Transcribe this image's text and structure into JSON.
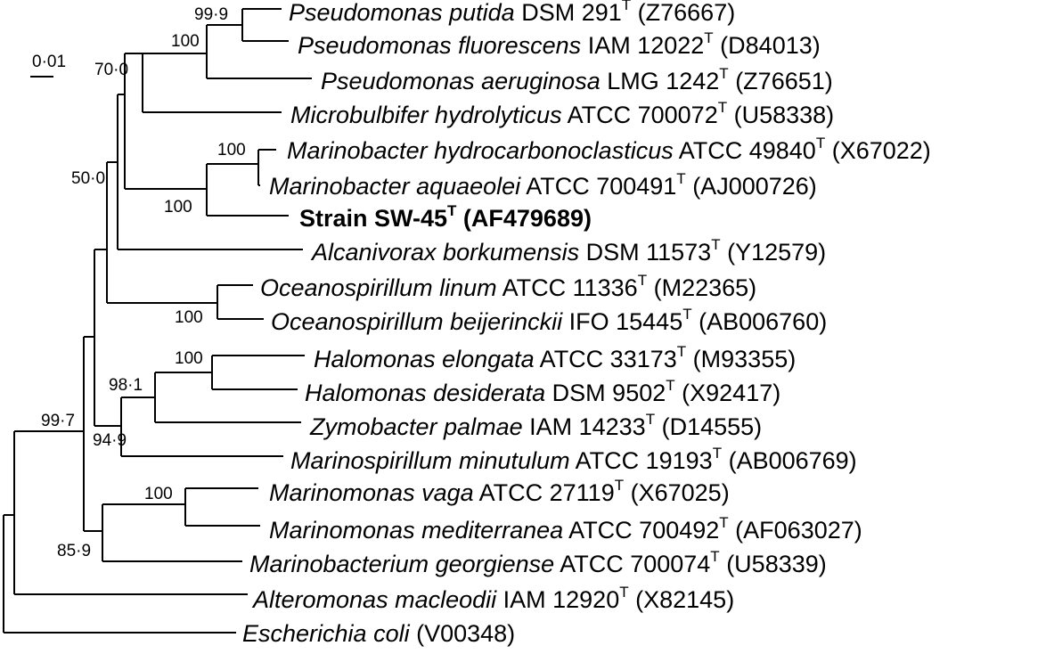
{
  "scale_bar": {
    "label": "0·01"
  },
  "taxa": [
    {
      "id": "t1",
      "genus": "Pseudomonas putida",
      "strain": " DSM 291",
      "type_strain": "T",
      "accession": " (Z76667)"
    },
    {
      "id": "t2",
      "genus": "Pseudomonas fluorescens",
      "strain": " IAM 12022",
      "type_strain": "T",
      "accession": " (D84013)"
    },
    {
      "id": "t3",
      "genus": "Pseudomonas aeruginosa",
      "strain": " LMG 1242",
      "type_strain": "T",
      "accession": " (Z76651)"
    },
    {
      "id": "t4",
      "genus": "Microbulbifer hydrolyticus",
      "strain": " ATCC 700072",
      "type_strain": "T",
      "accession": " (U58338)"
    },
    {
      "id": "t5",
      "genus": "Marinobacter hydrocarbonoclasticus",
      "strain": " ATCC 49840",
      "type_strain": "T",
      "accession": " (X67022)"
    },
    {
      "id": "t6",
      "genus": "Marinobacter aquaeolei",
      "strain": " ATCC 700491",
      "type_strain": "T",
      "accession": " (AJ000726)"
    },
    {
      "id": "t7",
      "genus": "",
      "strain": "Strain SW-45",
      "type_strain": "T",
      "accession": " (AF479689)",
      "bold": true
    },
    {
      "id": "t8",
      "genus": "Alcanivorax borkumensis",
      "strain": " DSM 11573",
      "type_strain": "T",
      "accession": " (Y12579)"
    },
    {
      "id": "t9",
      "genus": "Oceanospirillum linum",
      "strain": " ATCC 11336",
      "type_strain": "T",
      "accession": " (M22365)"
    },
    {
      "id": "t10",
      "genus": "Oceanospirillum beijerinckii",
      "strain": " IFO 15445",
      "type_strain": "T",
      "accession": " (AB006760)"
    },
    {
      "id": "t11",
      "genus": "Halomonas elongata",
      "strain": " ATCC 33173",
      "type_strain": "T",
      "accession": " (M93355)"
    },
    {
      "id": "t12",
      "genus": "Halomonas desiderata",
      "strain": " DSM 9502",
      "type_strain": "T",
      "accession": " (X92417)"
    },
    {
      "id": "t13",
      "genus": "Zymobacter palmae",
      "strain": " IAM 14233",
      "type_strain": "T",
      "accession": " (D14555)"
    },
    {
      "id": "t14",
      "genus": "Marinospirillum minutulum",
      "strain": " ATCC 19193",
      "type_strain": "T",
      "accession": " (AB006769)"
    },
    {
      "id": "t15",
      "genus": "Marinomonas vaga",
      "strain": " ATCC 27119",
      "type_strain": "T",
      "accession": " (X67025)"
    },
    {
      "id": "t16",
      "genus": "Marinomonas mediterranea",
      "strain": " ATCC 700492",
      "type_strain": "T",
      "accession": " (AF063027)"
    },
    {
      "id": "t17",
      "genus": "Marinobacterium georgiense",
      "strain": " ATCC 700074",
      "type_strain": "T",
      "accession": " (U58339)"
    },
    {
      "id": "t18",
      "genus": "Alteromonas macleodii",
      "strain": " IAM 12920",
      "type_strain": "T",
      "accession": " (X82145)"
    },
    {
      "id": "t19",
      "genus": "Escherichia coli",
      "strain": "",
      "type_strain": "",
      "accession": " (V00348)"
    }
  ],
  "bootstrap": {
    "b_putida_fluorescens": "99·9",
    "b_pseudomonas": "100",
    "b_pseudo_micro": "70·0",
    "b_marinobacter": "100",
    "b_marino_sw45": "100",
    "b_upper_clade": "50·0",
    "b_oceanospirillum": "100",
    "b_halomonas": "100",
    "b_halo_zymo": "98·1",
    "b_halo_marinospirillum": "94·9",
    "b_ingroup": "99·7",
    "b_marinomonas": "100",
    "b_marinomonas_marinobacterium": "85·9"
  }
}
